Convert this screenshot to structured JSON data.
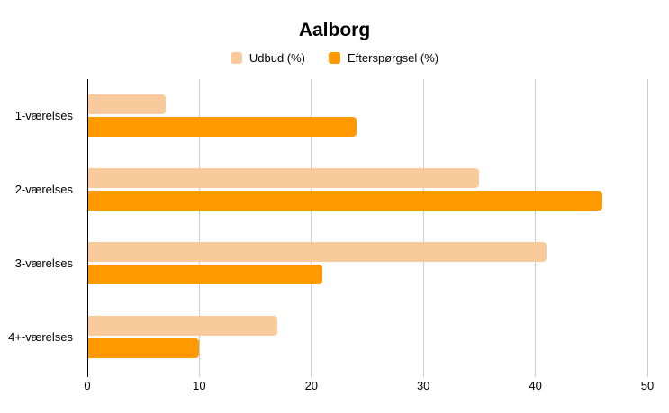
{
  "title": "Aalborg",
  "colors": {
    "series_udbud": "#f9cb9c",
    "series_efterspoergsel": "#ff9900",
    "gridline": "#cccccc",
    "axis_line": "#000000",
    "text": "#000000",
    "background": "#ffffff"
  },
  "chart_data": {
    "type": "bar",
    "orientation": "horizontal",
    "title": "Aalborg",
    "categories": [
      "1-værelses",
      "2-værelses",
      "3-værelses",
      "4+-værelses"
    ],
    "series": [
      {
        "name": "Udbud (%)",
        "color": "#f9cb9c",
        "values": [
          7,
          35,
          41,
          17
        ]
      },
      {
        "name": "Efterspørgsel (%)",
        "color": "#ff9900",
        "values": [
          24,
          46,
          21,
          10
        ]
      }
    ],
    "xlabel": "",
    "ylabel": "",
    "xlim": [
      0,
      50
    ],
    "x_ticks": [
      0,
      10,
      20,
      30,
      40,
      50
    ],
    "grid": true,
    "legend_position": "top"
  }
}
